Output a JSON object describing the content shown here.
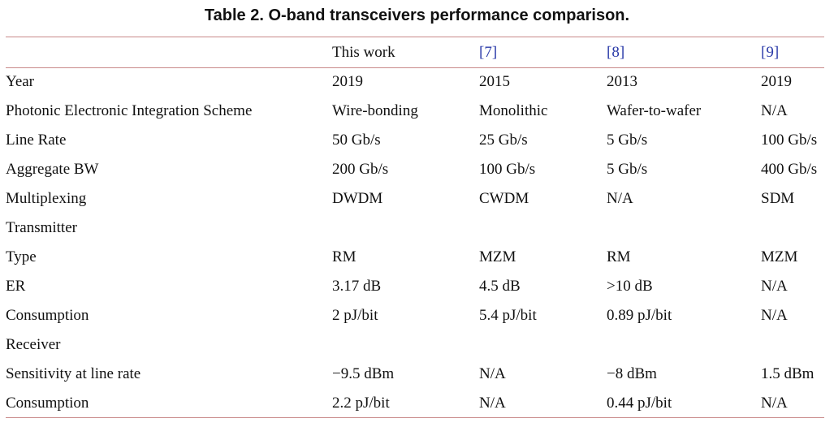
{
  "caption": "Table  2.  O-band transceivers performance comparison.",
  "header": [
    "",
    "This work",
    "[7]",
    "[8]",
    "[9]"
  ],
  "rows": {
    "year": [
      "Year",
      "2019",
      "2015",
      "2013",
      "2019"
    ],
    "integration": [
      "Photonic Electronic Integration Scheme",
      "Wire-bonding",
      "Monolithic",
      "Wafer-to-wafer",
      "N/A"
    ],
    "line_rate": [
      "Line Rate",
      "50 Gb/s",
      "25 Gb/s",
      "5 Gb/s",
      "100 Gb/s"
    ],
    "aggregate_bw": [
      "Aggregate BW",
      "200 Gb/s",
      "100 Gb/s",
      "5 Gb/s",
      "400 Gb/s"
    ],
    "multiplexing": [
      "Multiplexing",
      "DWDM",
      "CWDM",
      "N/A",
      "SDM"
    ],
    "transmitter_heading": "Transmitter",
    "tx_type": [
      "Type",
      "RM",
      "MZM",
      "RM",
      "MZM"
    ],
    "tx_er": [
      "ER",
      "3.17 dB",
      "4.5 dB",
      ">10 dB",
      "N/A"
    ],
    "tx_consumption": [
      "Consumption",
      "2 pJ/bit",
      "5.4 pJ/bit",
      "0.89 pJ/bit",
      "N/A"
    ],
    "receiver_heading": "Receiver",
    "rx_sensitivity": [
      "Sensitivity at line rate",
      "−9.5 dBm",
      "N/A",
      "−8 dBm",
      "1.5 dBm"
    ],
    "rx_consumption": [
      "Consumption",
      "2.2 pJ/bit",
      "N/A",
      "0.44 pJ/bit",
      "N/A"
    ]
  },
  "colors": {
    "rule": "#c98a8a",
    "reference_link": "#2a3aa8"
  }
}
